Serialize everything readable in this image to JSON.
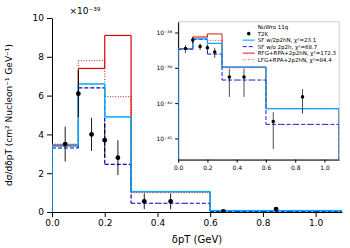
{
  "chart_data": [
    {
      "type": "histogram",
      "xlabel": "δpT (GeV)",
      "ylabel": "dσ/dδpT (cm² Nucleon⁻¹ GeV⁻¹)",
      "annotations": [
        "×10⁻³⁹"
      ],
      "xlim": [
        0.0,
        1.1
      ],
      "ylim": [
        0,
        10
      ],
      "xticks": [
        {
          "value": 0,
          "label": "0.0"
        },
        0.2,
        0.4,
        0.6,
        0.8,
        {
          "value": 1,
          "label": "1.0"
        }
      ],
      "yticks": [
        0,
        2,
        4,
        6,
        8,
        10
      ],
      "bins": [
        0.0,
        0.1,
        0.2,
        0.3,
        0.4,
        0.5,
        0.6,
        0.7,
        0.8,
        0.9,
        1.0,
        1.1
      ],
      "series": [
        {
          "type": "scatter",
          "color": "black",
          "marker": "circle",
          "x": [
            0.05,
            0.1,
            0.15,
            0.2,
            0.25,
            0.35,
            0.45,
            0.65,
            0.85
          ],
          "values": [
            3.5,
            6.1,
            4.0,
            3.7,
            2.8,
            0.55,
            0.55,
            0.03,
            0.15
          ],
          "yerr_lo": [
            0.9,
            1.2,
            0.85,
            0.9,
            0.9,
            0.4,
            0.4,
            0.025,
            0.1
          ],
          "yerr_hi": [
            0.9,
            1.2,
            0.85,
            0.9,
            0.9,
            0.4,
            0.4,
            0.025,
            0.1
          ]
        },
        {
          "type": "step",
          "color": "#00aaff",
          "line_style": "solid",
          "values": [
            3.4,
            6.6,
            4.9,
            1.05,
            1.05,
            1.05,
            0.07,
            0.07,
            0.07,
            0.07,
            0.07
          ]
        },
        {
          "type": "step",
          "color": "#0000cc",
          "line_style": "dashed",
          "values": [
            3.3,
            6.4,
            2.45,
            0.45,
            0.45,
            0.45,
            0.025,
            0.025,
            0.025,
            0.025,
            0.025
          ]
        },
        {
          "type": "step",
          "color": "#dd0000",
          "line_style": "solid",
          "values": [
            3.45,
            7.4,
            9.1,
            1.05,
            1.05,
            1.05,
            0.07,
            0.07,
            0.07,
            0.07,
            0.07
          ]
        },
        {
          "type": "step",
          "color": "#cc4444",
          "line_style": "dotted",
          "values": [
            3.5,
            7.8,
            5.95,
            1.0,
            1.0,
            1.0,
            0.07,
            0.07,
            0.07,
            0.07,
            0.07
          ]
        }
      ]
    },
    {
      "type": "histogram",
      "log": "y",
      "legend": "upper right",
      "annotations": [
        "NuWro 11q"
      ],
      "xlim": [
        0.0,
        1.1
      ],
      "ylim": [
        2.51188643150958e-42,
        1.99526231496888e-38
      ],
      "xticks": [
        {
          "value": 0,
          "label": "0.0"
        },
        0.2,
        0.4,
        0.6,
        0.8,
        {
          "value": 1,
          "label": "1.0"
        }
      ],
      "yticks": [
        {
          "value": 1e-41,
          "label": "10⁻⁴¹"
        },
        {
          "value": 1e-40,
          "label": "10⁻⁴⁰"
        },
        {
          "value": 1e-39,
          "label": "10⁻³⁹"
        },
        {
          "value": 1e-38,
          "label": "10⁻³⁸"
        }
      ],
      "bins": [
        0.0,
        0.1,
        0.2,
        0.3,
        0.4,
        0.5,
        0.6,
        0.7,
        0.8,
        0.9,
        1.0,
        1.1
      ],
      "series": [
        {
          "name": "T2K",
          "type": "scatter",
          "color": "black",
          "marker": "circle",
          "x": [
            0.05,
            0.1,
            0.15,
            0.2,
            0.25,
            0.35,
            0.45,
            0.65,
            0.85
          ],
          "values": [
            3.5e-39,
            6.1e-39,
            4e-39,
            3.7e-39,
            2.8e-39,
            5.5e-40,
            5.5e-40,
            3e-41,
            1.5e-40
          ],
          "yerr_lo": [
            9e-40,
            1.2e-39,
            8.5e-40,
            9e-40,
            9e-40,
            4e-40,
            4e-40,
            2.5e-41,
            1e-40
          ],
          "yerr_hi": [
            9e-40,
            1.2e-39,
            8.5e-40,
            9e-40,
            9e-40,
            4e-40,
            4e-40,
            2.5e-41,
            1e-40
          ]
        },
        {
          "name": "SF w/2p2hN, χ²=23.1",
          "type": "step",
          "color": "#00aaff",
          "line_style": "solid",
          "values": [
            3.4e-39,
            6.6e-39,
            4.9e-39,
            1.05e-39,
            1.05e-39,
            1.05e-39,
            7e-41,
            7e-41,
            7e-41,
            7e-41,
            7e-41
          ]
        },
        {
          "name": "SF w/o 2p2h, χ²=68.7",
          "type": "step",
          "color": "#0000cc",
          "line_style": "dashed",
          "values": [
            3.3e-39,
            6.4e-39,
            2.45e-39,
            4.5e-40,
            4.5e-40,
            4.5e-40,
            2.5e-41,
            2.5e-41,
            2.5e-41,
            2.5e-41,
            2.5e-41
          ]
        },
        {
          "name": "RFG+RPA+2p2hN, χ²=172.3",
          "type": "step",
          "color": "#dd0000",
          "line_style": "solid",
          "values": [
            3.45e-39,
            7.4e-39,
            9.1e-39,
            1.05e-39,
            1.05e-39,
            1.05e-39,
            7e-41,
            7e-41,
            7e-41,
            7e-41,
            7e-41
          ]
        },
        {
          "name": "LFG+RPA+2p2hN, χ²=84.4",
          "type": "step",
          "color": "#cc4444",
          "line_style": "dotted",
          "values": [
            3.5e-39,
            7.8e-39,
            5.95e-39,
            1e-39,
            1e-39,
            1e-39,
            7e-41,
            7e-41,
            7e-41,
            7e-41,
            7e-41
          ]
        }
      ]
    }
  ]
}
